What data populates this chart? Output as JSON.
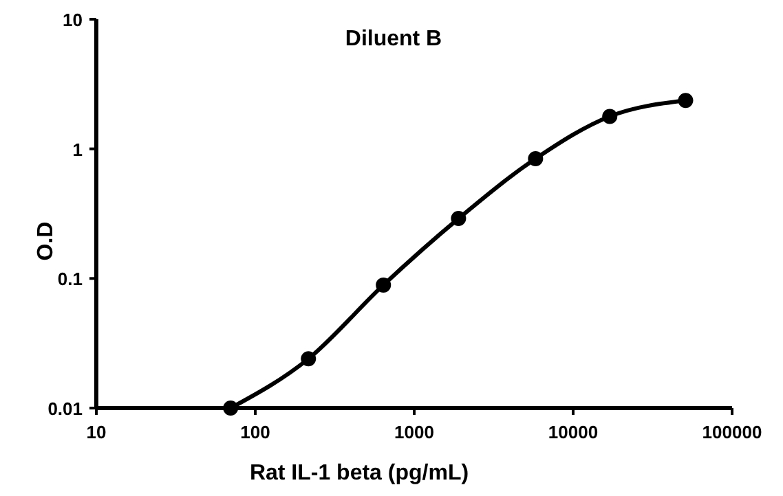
{
  "chart_data": {
    "type": "line",
    "title": "Diluent B",
    "xlabel": "Rat IL-1 beta (pg/mL)",
    "ylabel": "O.D",
    "log": "xy",
    "marker": "circle",
    "line_style": "solid",
    "grid": false,
    "x": [
      70,
      216,
      640,
      1900,
      5800,
      17000,
      51000
    ],
    "series": [
      {
        "color": "#000000",
        "values": [
          0.01,
          0.024,
          0.089,
          0.29,
          0.84,
          1.78,
          2.36
        ]
      }
    ],
    "xlim": [
      10,
      100000
    ],
    "xticks": [
      10,
      100,
      1000,
      10000,
      100000
    ],
    "ylim": [
      0.01,
      10
    ],
    "yticks": [
      0.01,
      0.1,
      1,
      10
    ]
  }
}
